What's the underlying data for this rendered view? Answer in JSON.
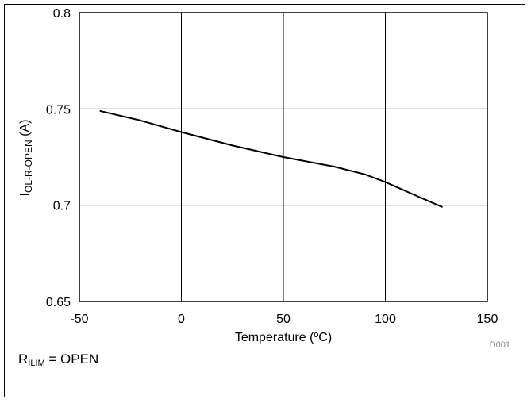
{
  "chart_data": {
    "type": "line",
    "title": "",
    "xlabel": "Temperature (ºC)",
    "ylabel_main": "I",
    "ylabel_sub": "OL-R-OPEN",
    "ylabel_unit": "(A)",
    "xlim": [
      -50,
      150
    ],
    "ylim": [
      0.65,
      0.8
    ],
    "xticks": [
      -50,
      0,
      50,
      100,
      150
    ],
    "xtick_labels": [
      "-50",
      "0",
      "50",
      "100",
      "150"
    ],
    "yticks": [
      0.65,
      0.7,
      0.75,
      0.8
    ],
    "ytick_labels": [
      "0.65",
      "0.7",
      "0.75",
      "0.8"
    ],
    "grid": true,
    "series": [
      {
        "x": [
          -40,
          -20,
          0,
          25,
          50,
          75,
          90,
          100,
          115,
          128
        ],
        "y": [
          0.749,
          0.744,
          0.738,
          0.731,
          0.725,
          0.72,
          0.716,
          0.712,
          0.705,
          0.699
        ]
      }
    ],
    "figure_id": "D001"
  },
  "caption": {
    "prefix": "R",
    "sub": "ILIM",
    "suffix": " = OPEN"
  },
  "colors": {
    "line": "#000000",
    "grid": "#000000"
  }
}
